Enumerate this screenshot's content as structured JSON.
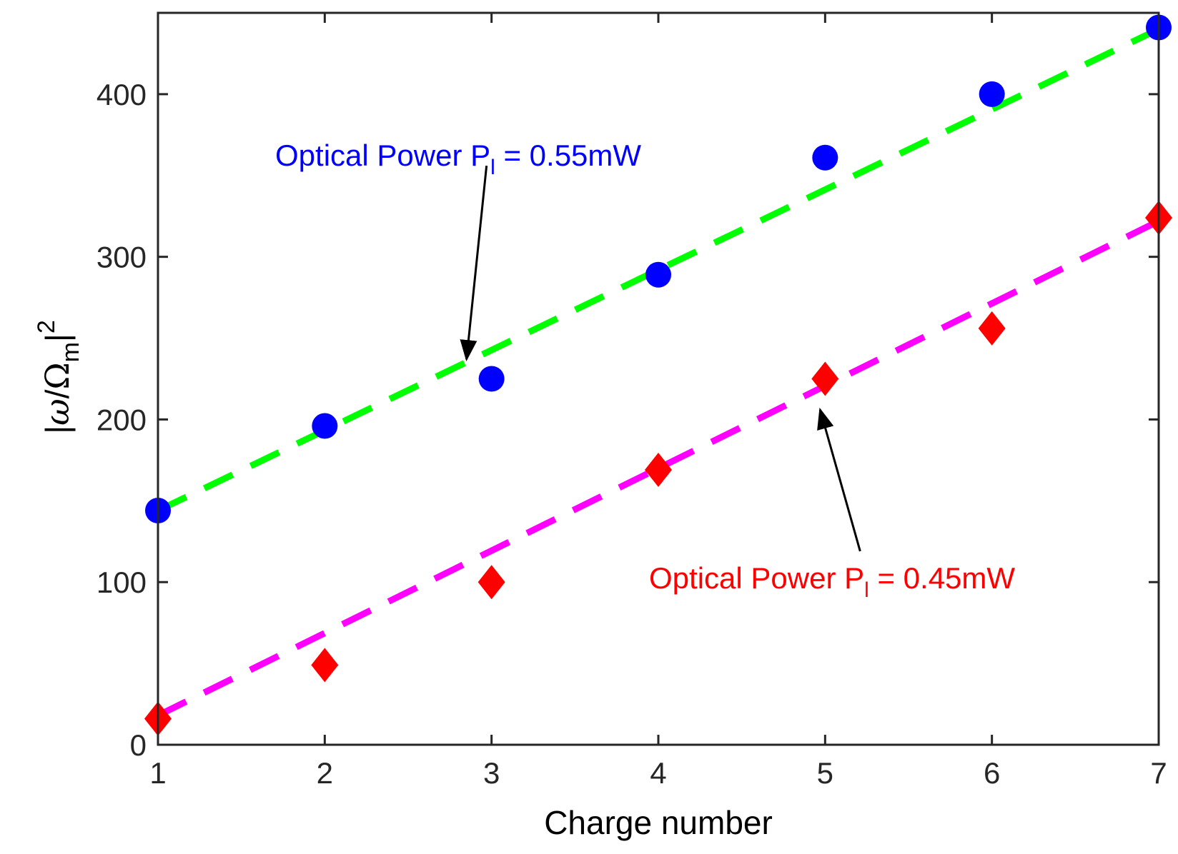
{
  "chart_data": {
    "type": "scatter",
    "xlabel": "Charge number",
    "ylabel": {
      "open": "|",
      "omega": "ω",
      "slash": "/",
      "Omega": "Ω",
      "sub": "m",
      "close": "|",
      "sup": "2"
    },
    "xlim": [
      1,
      7
    ],
    "ylim": [
      0,
      450
    ],
    "xticks": [
      1,
      2,
      3,
      4,
      5,
      6,
      7
    ],
    "yticks": [
      0,
      100,
      200,
      300,
      400
    ],
    "grid": false,
    "series": [
      {
        "name": "Optical Power P_l = 0.55mW",
        "marker": "circle",
        "color": "#0000ff",
        "x": [
          1,
          2,
          3,
          4,
          5,
          6,
          7
        ],
        "values": [
          144,
          196,
          225,
          289,
          361,
          400,
          441
        ]
      },
      {
        "name": "Optical Power P_l = 0.45mW",
        "marker": "diamond",
        "color": "#ff0000",
        "x": [
          1,
          2,
          3,
          4,
          5,
          6,
          7
        ],
        "values": [
          16,
          49,
          100,
          169,
          225,
          256,
          324
        ]
      }
    ],
    "fits": [
      {
        "name": "fit-0.55mW",
        "color": "#00ff00",
        "style": "dashed",
        "x": [
          1,
          7
        ],
        "values": [
          144,
          440
        ]
      },
      {
        "name": "fit-0.45mW",
        "color": "#ff00ff",
        "style": "dashed",
        "x": [
          1,
          7
        ],
        "values": [
          18,
          322
        ]
      }
    ],
    "annotations": [
      {
        "name": "annotation-055",
        "prefix": "Optical Power P",
        "sub": "l",
        "suffix": " = 0.55mW",
        "color": "#0000ff",
        "arrow_from": [
          2.97,
          356
        ],
        "arrow_to": [
          2.85,
          237
        ]
      },
      {
        "name": "annotation-045",
        "prefix": "Optical Power P",
        "sub": "l",
        "suffix": " = 0.45mW",
        "color": "#ff0000",
        "arrow_from": [
          5.21,
          119
        ],
        "arrow_to": [
          4.97,
          206
        ]
      }
    ]
  }
}
